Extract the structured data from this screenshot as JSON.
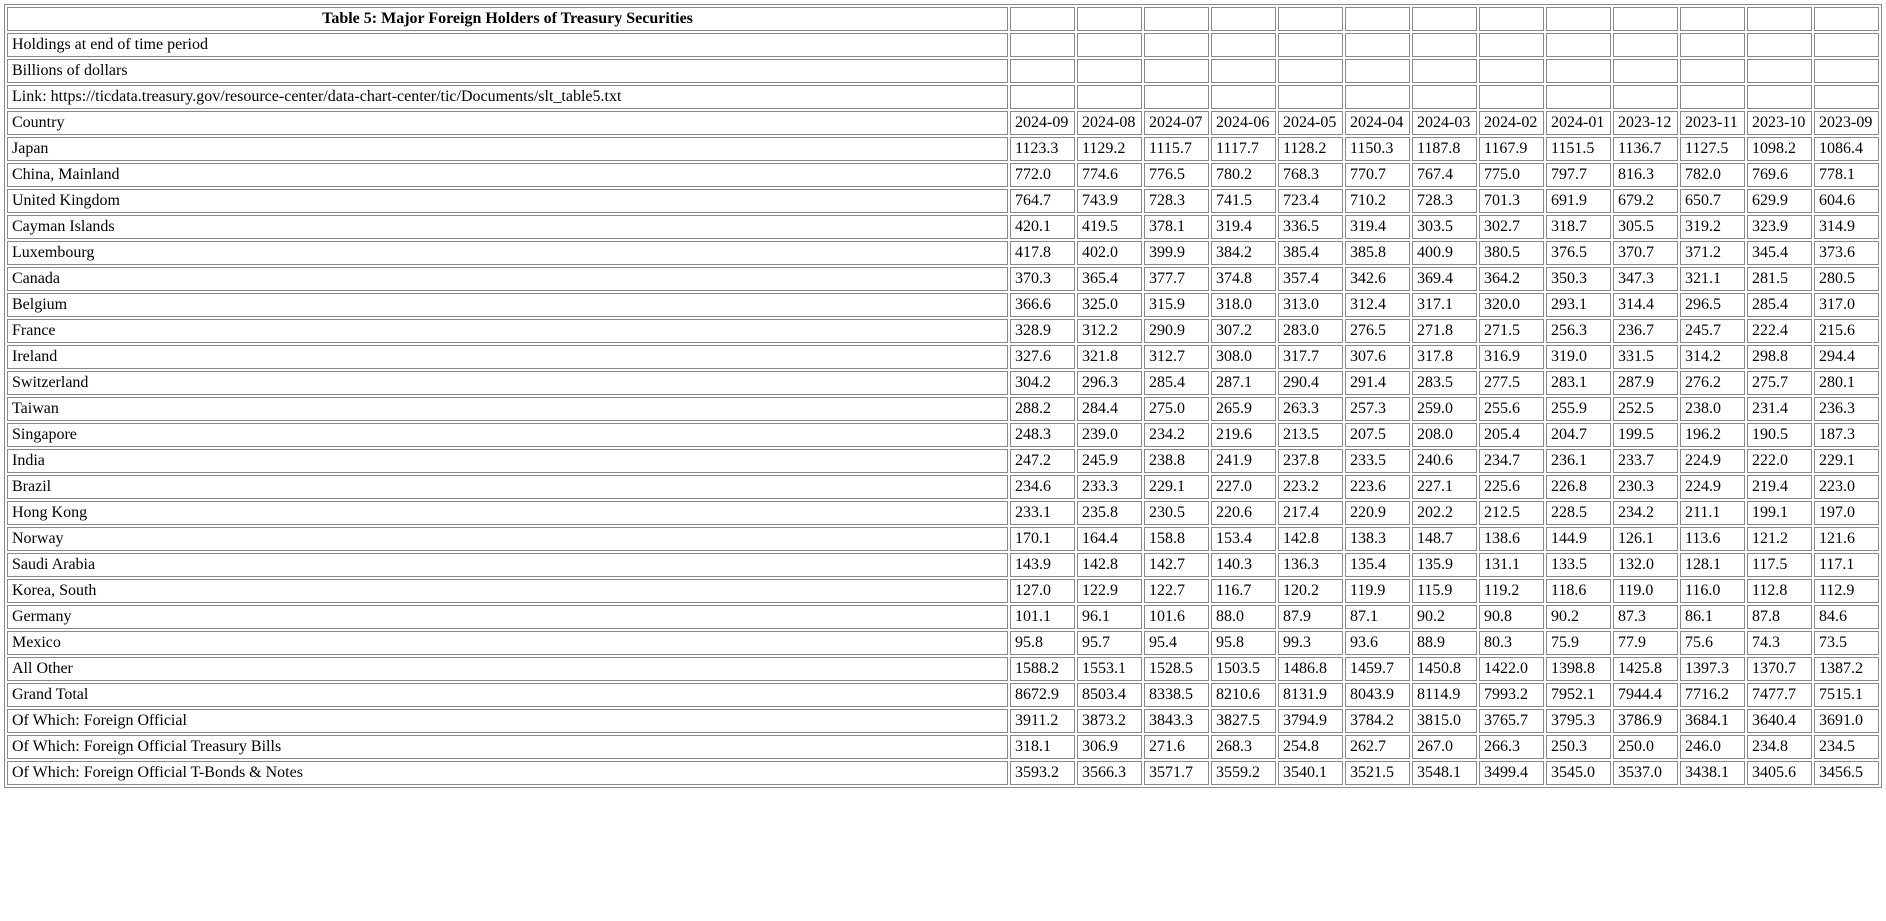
{
  "header": {
    "title": "Table 5: Major Foreign Holders of Treasury Securities",
    "subtitle1": "Holdings at end of time period",
    "subtitle2": "Billions of dollars",
    "link_text": "Link: https://ticdata.treasury.gov/resource-center/data-chart-center/tic/Documents/slt_table5.txt",
    "country_label": "Country"
  },
  "periods": [
    "2024-09",
    "2024-08",
    "2024-07",
    "2024-06",
    "2024-05",
    "2024-04",
    "2024-03",
    "2024-02",
    "2024-01",
    "2023-12",
    "2023-11",
    "2023-10",
    "2023-09"
  ],
  "rows": [
    {
      "label": "Japan",
      "v": [
        "1123.3",
        "1129.2",
        "1115.7",
        "1117.7",
        "1128.2",
        "1150.3",
        "1187.8",
        "1167.9",
        "1151.5",
        "1136.7",
        "1127.5",
        "1098.2",
        "1086.4"
      ]
    },
    {
      "label": "China, Mainland",
      "v": [
        "772.0",
        "774.6",
        "776.5",
        "780.2",
        "768.3",
        "770.7",
        "767.4",
        "775.0",
        "797.7",
        "816.3",
        "782.0",
        "769.6",
        "778.1"
      ]
    },
    {
      "label": "United Kingdom",
      "v": [
        "764.7",
        "743.9",
        "728.3",
        "741.5",
        "723.4",
        "710.2",
        "728.3",
        "701.3",
        "691.9",
        "679.2",
        "650.7",
        "629.9",
        "604.6"
      ]
    },
    {
      "label": "Cayman Islands",
      "v": [
        "420.1",
        "419.5",
        "378.1",
        "319.4",
        "336.5",
        "319.4",
        "303.5",
        "302.7",
        "318.7",
        "305.5",
        "319.2",
        "323.9",
        "314.9"
      ]
    },
    {
      "label": "Luxembourg",
      "v": [
        "417.8",
        "402.0",
        "399.9",
        "384.2",
        "385.4",
        "385.8",
        "400.9",
        "380.5",
        "376.5",
        "370.7",
        "371.2",
        "345.4",
        "373.6"
      ]
    },
    {
      "label": "Canada",
      "v": [
        "370.3",
        "365.4",
        "377.7",
        "374.8",
        "357.4",
        "342.6",
        "369.4",
        "364.2",
        "350.3",
        "347.3",
        "321.1",
        "281.5",
        "280.5"
      ]
    },
    {
      "label": "Belgium",
      "v": [
        "366.6",
        "325.0",
        "315.9",
        "318.0",
        "313.0",
        "312.4",
        "317.1",
        "320.0",
        "293.1",
        "314.4",
        "296.5",
        "285.4",
        "317.0"
      ]
    },
    {
      "label": "France",
      "v": [
        "328.9",
        "312.2",
        "290.9",
        "307.2",
        "283.0",
        "276.5",
        "271.8",
        "271.5",
        "256.3",
        "236.7",
        "245.7",
        "222.4",
        "215.6"
      ]
    },
    {
      "label": "Ireland",
      "v": [
        "327.6",
        "321.8",
        "312.7",
        "308.0",
        "317.7",
        "307.6",
        "317.8",
        "316.9",
        "319.0",
        "331.5",
        "314.2",
        "298.8",
        "294.4"
      ]
    },
    {
      "label": "Switzerland",
      "v": [
        "304.2",
        "296.3",
        "285.4",
        "287.1",
        "290.4",
        "291.4",
        "283.5",
        "277.5",
        "283.1",
        "287.9",
        "276.2",
        "275.7",
        "280.1"
      ]
    },
    {
      "label": "Taiwan",
      "v": [
        "288.2",
        "284.4",
        "275.0",
        "265.9",
        "263.3",
        "257.3",
        "259.0",
        "255.6",
        "255.9",
        "252.5",
        "238.0",
        "231.4",
        "236.3"
      ]
    },
    {
      "label": "Singapore",
      "v": [
        "248.3",
        "239.0",
        "234.2",
        "219.6",
        "213.5",
        "207.5",
        "208.0",
        "205.4",
        "204.7",
        "199.5",
        "196.2",
        "190.5",
        "187.3"
      ]
    },
    {
      "label": "India",
      "v": [
        "247.2",
        "245.9",
        "238.8",
        "241.9",
        "237.8",
        "233.5",
        "240.6",
        "234.7",
        "236.1",
        "233.7",
        "224.9",
        "222.0",
        "229.1"
      ]
    },
    {
      "label": "Brazil",
      "v": [
        "234.6",
        "233.3",
        "229.1",
        "227.0",
        "223.2",
        "223.6",
        "227.1",
        "225.6",
        "226.8",
        "230.3",
        "224.9",
        "219.4",
        "223.0"
      ]
    },
    {
      "label": "Hong Kong",
      "v": [
        "233.1",
        "235.8",
        "230.5",
        "220.6",
        "217.4",
        "220.9",
        "202.2",
        "212.5",
        "228.5",
        "234.2",
        "211.1",
        "199.1",
        "197.0"
      ]
    },
    {
      "label": "Norway",
      "v": [
        "170.1",
        "164.4",
        "158.8",
        "153.4",
        "142.8",
        "138.3",
        "148.7",
        "138.6",
        "144.9",
        "126.1",
        "113.6",
        "121.2",
        "121.6"
      ]
    },
    {
      "label": "Saudi Arabia",
      "v": [
        "143.9",
        "142.8",
        "142.7",
        "140.3",
        "136.3",
        "135.4",
        "135.9",
        "131.1",
        "133.5",
        "132.0",
        "128.1",
        "117.5",
        "117.1"
      ]
    },
    {
      "label": "Korea, South",
      "v": [
        "127.0",
        "122.9",
        "122.7",
        "116.7",
        "120.2",
        "119.9",
        "115.9",
        "119.2",
        "118.6",
        "119.0",
        "116.0",
        "112.8",
        "112.9"
      ]
    },
    {
      "label": "Germany",
      "v": [
        "101.1",
        "96.1",
        "101.6",
        "88.0",
        "87.9",
        "87.1",
        "90.2",
        "90.8",
        "90.2",
        "87.3",
        "86.1",
        "87.8",
        "84.6"
      ]
    },
    {
      "label": "Mexico",
      "v": [
        "95.8",
        "95.7",
        "95.4",
        "95.8",
        "99.3",
        "93.6",
        "88.9",
        "80.3",
        "75.9",
        "77.9",
        "75.6",
        "74.3",
        "73.5"
      ]
    },
    {
      "label": "All Other",
      "v": [
        "1588.2",
        "1553.1",
        "1528.5",
        "1503.5",
        "1486.8",
        "1459.7",
        "1450.8",
        "1422.0",
        "1398.8",
        "1425.8",
        "1397.3",
        "1370.7",
        "1387.2"
      ]
    },
    {
      "label": "Grand Total",
      "v": [
        "8672.9",
        "8503.4",
        "8338.5",
        "8210.6",
        "8131.9",
        "8043.9",
        "8114.9",
        "7993.2",
        "7952.1",
        "7944.4",
        "7716.2",
        "7477.7",
        "7515.1"
      ]
    },
    {
      "label": "Of Which: Foreign Official",
      "v": [
        "3911.2",
        "3873.2",
        "3843.3",
        "3827.5",
        "3794.9",
        "3784.2",
        "3815.0",
        "3765.7",
        "3795.3",
        "3786.9",
        "3684.1",
        "3640.4",
        "3691.0"
      ]
    },
    {
      "label": "Of Which: Foreign Official Treasury Bills",
      "v": [
        "318.1",
        "306.9",
        "271.6",
        "268.3",
        "254.8",
        "262.7",
        "267.0",
        "266.3",
        "250.3",
        "250.0",
        "246.0",
        "234.8",
        "234.5"
      ]
    },
    {
      "label": "Of Which: Foreign Official T-Bonds & Notes",
      "v": [
        "3593.2",
        "3566.3",
        "3571.7",
        "3559.2",
        "3540.1",
        "3521.5",
        "3548.1",
        "3499.4",
        "3545.0",
        "3537.0",
        "3438.1",
        "3405.6",
        "3456.5"
      ]
    }
  ]
}
